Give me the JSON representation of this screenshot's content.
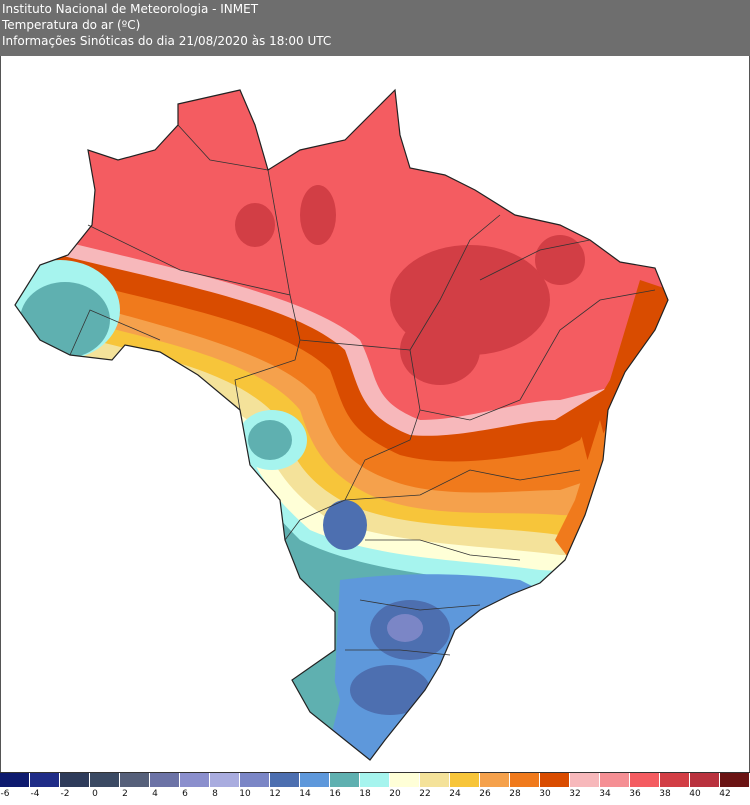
{
  "header": {
    "line1": "Instituto Nacional de Meteorologia - INMET",
    "line2": "Temperatura do ar (ºC)",
    "line3": "Informações Sinóticas do dia 21/08/2020 às 18:00 UTC"
  },
  "legend": {
    "bins": [
      {
        "label": "-6",
        "color": "#0d1a6e"
      },
      {
        "label": "-4",
        "color": "#1f2c87"
      },
      {
        "label": "-2",
        "color": "#2e3b5a"
      },
      {
        "label": "0",
        "color": "#3b4a63"
      },
      {
        "label": "2",
        "color": "#56607a"
      },
      {
        "label": "4",
        "color": "#6c73a6"
      },
      {
        "label": "6",
        "color": "#8b8fcd"
      },
      {
        "label": "8",
        "color": "#a9acdf"
      },
      {
        "label": "10",
        "color": "#7b86c6"
      },
      {
        "label": "12",
        "color": "#4d6fb0"
      },
      {
        "label": "14",
        "color": "#5e98db"
      },
      {
        "label": "16",
        "color": "#5fb0b0"
      },
      {
        "label": "18",
        "color": "#a6f4ee"
      },
      {
        "label": "20",
        "color": "#ffffd7"
      },
      {
        "label": "22",
        "color": "#f4e29a"
      },
      {
        "label": "24",
        "color": "#f7c53a"
      },
      {
        "label": "26",
        "color": "#f5a14c"
      },
      {
        "label": "28",
        "color": "#f07a1c"
      },
      {
        "label": "30",
        "color": "#d94c00"
      },
      {
        "label": "32",
        "color": "#f7b8bb"
      },
      {
        "label": "34",
        "color": "#f58f94"
      },
      {
        "label": "36",
        "color": "#f45c61"
      },
      {
        "label": "38",
        "color": "#d23e45"
      },
      {
        "label": "40",
        "color": "#b9323e"
      },
      {
        "label": "42",
        "color": "#6b1414"
      }
    ]
  },
  "map": {
    "region": "Brazil",
    "variable": "air temperature",
    "hot_color": "#f45c61",
    "cool_color": "#5fb0b0"
  }
}
